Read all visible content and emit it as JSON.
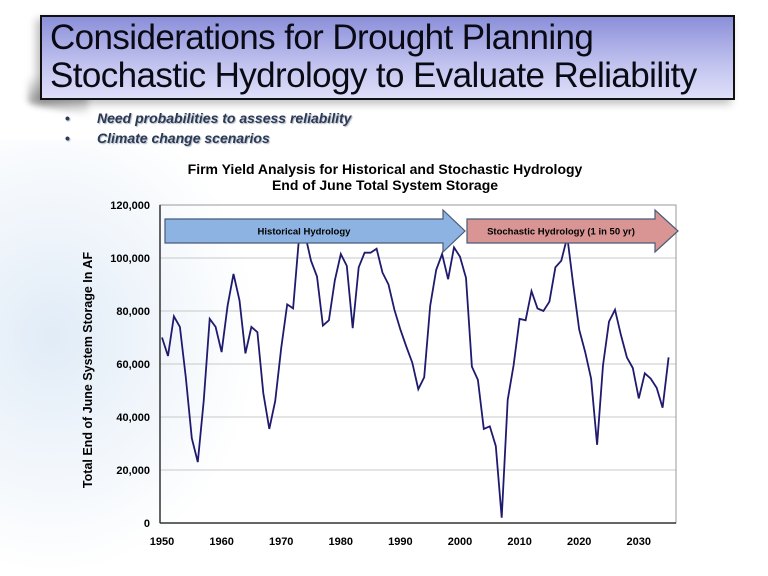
{
  "slide": {
    "title_line1": "Considerations for Drought Planning",
    "title_line2": "Stochastic Hydrology to Evaluate Reliability",
    "bullets": [
      {
        "marker": "•",
        "text": "Need probabilities to assess reliability"
      },
      {
        "marker": "•",
        "text": "Climate change scenarios"
      }
    ]
  },
  "colors": {
    "line": "#1f1a6e",
    "historical_arrow": "#8db3e2",
    "stochastic_arrow": "#d99594",
    "gridline": "#c8c8c8"
  },
  "chart_data": {
    "type": "line",
    "title": "Firm Yield Analysis for Historical and Stochastic Hydrology",
    "subtitle": "End of June Total System Storage",
    "xlabel": "",
    "ylabel": "Total End of June System Storage In AF",
    "xlim": [
      1950,
      2035
    ],
    "ylim": [
      0,
      120000
    ],
    "x_ticks": [
      1950,
      1960,
      1970,
      1980,
      1990,
      2000,
      2010,
      2020,
      2030
    ],
    "y_ticks": [
      0,
      20000,
      40000,
      60000,
      80000,
      100000,
      120000
    ],
    "y_tick_labels": [
      "0",
      "20,000",
      "40,000",
      "60,000",
      "80,000",
      "100,000",
      "120,000"
    ],
    "grid": "horizontal",
    "annotations": [
      {
        "label": "Historical Hydrology",
        "type": "arrow",
        "from_year": 1950,
        "to_year": 2000
      },
      {
        "label": "Stochastic Hydrology (1 in 50 yr)",
        "type": "arrow",
        "from_year": 2000,
        "to_year": 2035
      }
    ],
    "series": [
      {
        "name": "End of June Total System Storage",
        "x": [
          1950,
          1951,
          1952,
          1953,
          1954,
          1955,
          1956,
          1957,
          1958,
          1959,
          1960,
          1961,
          1962,
          1963,
          1964,
          1965,
          1966,
          1967,
          1968,
          1969,
          1970,
          1971,
          1972,
          1973,
          1974,
          1975,
          1976,
          1977,
          1978,
          1979,
          1980,
          1981,
          1982,
          1983,
          1984,
          1985,
          1986,
          1987,
          1988,
          1989,
          1990,
          1991,
          1992,
          1993,
          1994,
          1995,
          1996,
          1997,
          1998,
          1999,
          2000,
          2001,
          2002,
          2003,
          2004,
          2005,
          2006,
          2007,
          2008,
          2009,
          2010,
          2011,
          2012,
          2013,
          2014,
          2015,
          2016,
          2017,
          2018,
          2019,
          2020,
          2021,
          2022,
          2023,
          2024,
          2025,
          2026,
          2027,
          2028,
          2029,
          2030,
          2031,
          2032,
          2033,
          2034,
          2035
        ],
        "values": [
          70000,
          63000,
          78000,
          74000,
          55000,
          32000,
          23000,
          46000,
          77000,
          74000,
          64500,
          82000,
          94000,
          84000,
          64000,
          74000,
          72000,
          49000,
          35500,
          46000,
          66000,
          82500,
          81000,
          108000,
          109000,
          99000,
          93000,
          74500,
          76500,
          91500,
          101500,
          97000,
          73500,
          96500,
          102000,
          102000,
          103500,
          94500,
          90000,
          80500,
          73000,
          66500,
          60500,
          50500,
          55000,
          82000,
          95500,
          101500,
          92000,
          104000,
          100500,
          92500,
          59000,
          54000,
          35500,
          36500,
          29000,
          2000,
          46500,
          59500,
          77000,
          76500,
          87500,
          81000,
          80000,
          83500,
          96500,
          99000,
          108000,
          90000,
          73000,
          64500,
          54500,
          29500,
          59500,
          76000,
          80500,
          71000,
          62500,
          58500,
          47000,
          56500,
          54500,
          51000,
          43500,
          62500
        ]
      }
    ]
  }
}
